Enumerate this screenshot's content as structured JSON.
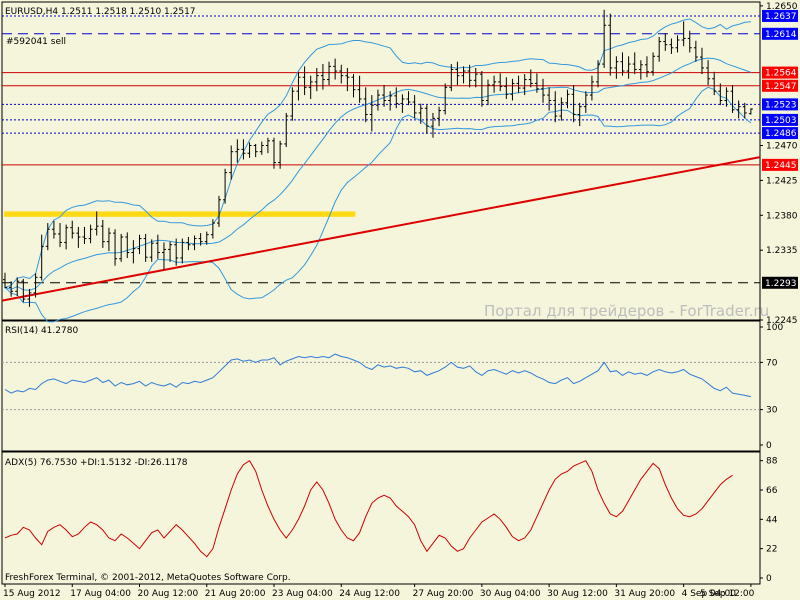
{
  "window": {
    "header": "EURUSD,H4  1.2511 1.2518 1.2510 1.2517",
    "order_label": "#592041 sell",
    "watermark": "Портал для трейдеров - ForTrader.ru",
    "copyright": "FreshForex Terminal, © 2001-2012, MetaQuotes Software Corp."
  },
  "colors": {
    "background": "#F5F5DC",
    "candle": "#000000",
    "bollinger": "#3399DD",
    "rsi": "#2E7BD6",
    "adx": "#CC0000",
    "support_line": "#DD0000",
    "level_red": "#CC0000",
    "level_blue": "#0000CC",
    "label_red_bg": "#FF0000",
    "label_blue_bg": "#0000FF",
    "zone": "#FFD700"
  },
  "chart_data": [
    {
      "type": "candlestick",
      "symbol": "EURUSD",
      "timeframe": "H4",
      "header_values": {
        "open": 1.2511,
        "high": 1.2518,
        "low": 1.251,
        "close": 1.2517
      },
      "ylim": [
        1.2245,
        1.2655
      ],
      "y_ticks": [
        1.265,
        1.2614,
        1.2564,
        1.2547,
        1.2523,
        1.2503,
        1.2486,
        1.247,
        1.2445,
        1.2425,
        1.238,
        1.2335,
        1.2293,
        1.2245
      ],
      "y_tick_labels": [
        "1.2650",
        "1.2614",
        "1.2564",
        "1.2547",
        "1.2523",
        "1.2503",
        "1.2486",
        "1.2470",
        "1.2445",
        "1.2425",
        "1.2380",
        "1.2335",
        "1.2293",
        "1.2245"
      ],
      "x_labels": [
        "15 Aug 2012",
        "17 Aug 04:00",
        "20 Aug 12:00",
        "21 Aug 20:00",
        "23 Aug 04:00",
        "24 Aug 12:00",
        "27 Aug 20:00",
        "30 Aug 04:00",
        "30 Aug 12:00",
        "31 Aug 20:00",
        "4 Sep 04:00",
        "5 Sep 12:00"
      ],
      "price_levels": [
        {
          "price": 1.2637,
          "label": "1.2637",
          "style": "dotted",
          "color": "blue"
        },
        {
          "price": 1.2614,
          "label": "1.2614",
          "style": "dashed",
          "color": "blue"
        },
        {
          "price": 1.2564,
          "label": "1.2564",
          "style": "solid",
          "color": "red"
        },
        {
          "price": 1.2547,
          "label": "1.2547",
          "style": "solid",
          "color": "red"
        },
        {
          "price": 1.2523,
          "label": "1.2523",
          "style": "dotted",
          "color": "blue"
        },
        {
          "price": 1.2503,
          "label": "1.2503",
          "style": "dotted",
          "color": "blue"
        },
        {
          "price": 1.2486,
          "label": "1.2486",
          "style": "dotted",
          "color": "blue"
        },
        {
          "price": 1.2445,
          "label": "1.2445",
          "style": "solid",
          "color": "red"
        },
        {
          "price": 1.2293,
          "label": "1.2293",
          "style": "dashed",
          "color": "black"
        }
      ],
      "trendline": {
        "start_price": 1.227,
        "end_price": 1.2455
      },
      "zone": {
        "top": 1.2385,
        "bottom": 1.2378,
        "end_bar": 57
      },
      "candles": [
        [
          1.2297,
          1.2306,
          1.2286,
          1.2287
        ],
        [
          1.2287,
          1.2295,
          1.2275,
          1.2282
        ],
        [
          1.2282,
          1.23,
          1.2276,
          1.2295
        ],
        [
          1.2295,
          1.2298,
          1.2268,
          1.2272
        ],
        [
          1.2272,
          1.2285,
          1.2262,
          1.228
        ],
        [
          1.228,
          1.2305,
          1.2274,
          1.23
        ],
        [
          1.23,
          1.2355,
          1.2296,
          1.234
        ],
        [
          1.234,
          1.237,
          1.2335,
          1.2362
        ],
        [
          1.2362,
          1.2373,
          1.235,
          1.2356
        ],
        [
          1.2356,
          1.237,
          1.2339,
          1.2345
        ],
        [
          1.2345,
          1.2368,
          1.2336,
          1.2364
        ],
        [
          1.2364,
          1.2373,
          1.235,
          1.2357
        ],
        [
          1.2357,
          1.2365,
          1.2338,
          1.2352
        ],
        [
          1.2352,
          1.2365,
          1.2343,
          1.235
        ],
        [
          1.235,
          1.2368,
          1.2344,
          1.2362
        ],
        [
          1.2362,
          1.2385,
          1.2354,
          1.2366
        ],
        [
          1.2366,
          1.2374,
          1.2338,
          1.2346
        ],
        [
          1.2346,
          1.2364,
          1.2334,
          1.2357
        ],
        [
          1.2357,
          1.2362,
          1.2315,
          1.2324
        ],
        [
          1.2324,
          1.2356,
          1.232,
          1.2352
        ],
        [
          1.2352,
          1.2358,
          1.2325,
          1.2332
        ],
        [
          1.2332,
          1.2348,
          1.2318,
          1.2337
        ],
        [
          1.2337,
          1.2355,
          1.233,
          1.235
        ],
        [
          1.235,
          1.2356,
          1.232,
          1.2326
        ],
        [
          1.2326,
          1.2349,
          1.232,
          1.2344
        ],
        [
          1.2344,
          1.2355,
          1.2324,
          1.2332
        ],
        [
          1.2332,
          1.2345,
          1.231,
          1.2336
        ],
        [
          1.2336,
          1.2346,
          1.232,
          1.2342
        ],
        [
          1.2342,
          1.235,
          1.2315,
          1.2325
        ],
        [
          1.2325,
          1.235,
          1.2318,
          1.2345
        ],
        [
          1.2345,
          1.2352,
          1.2335,
          1.2342
        ],
        [
          1.2342,
          1.2354,
          1.2335,
          1.235
        ],
        [
          1.235,
          1.2357,
          1.2341,
          1.2346
        ],
        [
          1.2346,
          1.2359,
          1.2342,
          1.2355
        ],
        [
          1.2355,
          1.2375,
          1.235,
          1.237
        ],
        [
          1.237,
          1.2405,
          1.2365,
          1.24
        ],
        [
          1.24,
          1.244,
          1.2395,
          1.2435
        ],
        [
          1.2435,
          1.247,
          1.2426,
          1.2462
        ],
        [
          1.2462,
          1.2478,
          1.2448,
          1.2465
        ],
        [
          1.2465,
          1.2478,
          1.2452,
          1.246
        ],
        [
          1.246,
          1.2474,
          1.2454,
          1.247
        ],
        [
          1.247,
          1.2472,
          1.2455,
          1.2462
        ],
        [
          1.2462,
          1.2475,
          1.2458,
          1.247
        ],
        [
          1.247,
          1.248,
          1.246,
          1.2476
        ],
        [
          1.2476,
          1.248,
          1.244,
          1.2448
        ],
        [
          1.2448,
          1.2476,
          1.244,
          1.2472
        ],
        [
          1.2472,
          1.2512,
          1.2468,
          1.2508
        ],
        [
          1.2508,
          1.2545,
          1.2502,
          1.254
        ],
        [
          1.254,
          1.2565,
          1.2528,
          1.2558
        ],
        [
          1.2558,
          1.2572,
          1.2535,
          1.2545
        ],
        [
          1.2545,
          1.256,
          1.253,
          1.2552
        ],
        [
          1.2552,
          1.257,
          1.254,
          1.256
        ],
        [
          1.256,
          1.2575,
          1.2542,
          1.2555
        ],
        [
          1.2555,
          1.2578,
          1.2548,
          1.2572
        ],
        [
          1.2572,
          1.2582,
          1.2555,
          1.2566
        ],
        [
          1.2566,
          1.2574,
          1.255,
          1.256
        ],
        [
          1.256,
          1.257,
          1.254,
          1.2558
        ],
        [
          1.2558,
          1.2562,
          1.2532,
          1.2542
        ],
        [
          1.2542,
          1.256,
          1.2525,
          1.253
        ],
        [
          1.253,
          1.2545,
          1.25,
          1.251
        ],
        [
          1.251,
          1.2535,
          1.2488,
          1.2522
        ],
        [
          1.2522,
          1.2542,
          1.2515,
          1.2535
        ],
        [
          1.2535,
          1.2548,
          1.252,
          1.2528
        ],
        [
          1.2528,
          1.254,
          1.2515,
          1.2534
        ],
        [
          1.2534,
          1.2545,
          1.2518,
          1.2524
        ],
        [
          1.2524,
          1.2536,
          1.2512,
          1.253
        ],
        [
          1.253,
          1.254,
          1.2522,
          1.2526
        ],
        [
          1.2526,
          1.2535,
          1.2505,
          1.2512
        ],
        [
          1.2512,
          1.2524,
          1.2498,
          1.2518
        ],
        [
          1.2518,
          1.2522,
          1.2485,
          1.2495
        ],
        [
          1.2495,
          1.2512,
          1.248,
          1.2505
        ],
        [
          1.2505,
          1.252,
          1.2495,
          1.2515
        ],
        [
          1.2515,
          1.255,
          1.251,
          1.2545
        ],
        [
          1.2545,
          1.2575,
          1.254,
          1.2568
        ],
        [
          1.2568,
          1.2578,
          1.2548,
          1.256
        ],
        [
          1.256,
          1.2572,
          1.255,
          1.2566
        ],
        [
          1.2566,
          1.2574,
          1.2545,
          1.2554
        ],
        [
          1.2554,
          1.257,
          1.2545,
          1.2562
        ],
        [
          1.2562,
          1.2566,
          1.252,
          1.2528
        ],
        [
          1.2528,
          1.2555,
          1.2522,
          1.2548
        ],
        [
          1.2548,
          1.256,
          1.2538,
          1.2552
        ],
        [
          1.2552,
          1.2563,
          1.254,
          1.2546
        ],
        [
          1.2546,
          1.2558,
          1.253,
          1.2536
        ],
        [
          1.2536,
          1.2556,
          1.2528,
          1.255
        ],
        [
          1.255,
          1.256,
          1.2538,
          1.2544
        ],
        [
          1.2544,
          1.2562,
          1.2535,
          1.2555
        ],
        [
          1.2555,
          1.2568,
          1.2545,
          1.255
        ],
        [
          1.255,
          1.2563,
          1.2538,
          1.2543
        ],
        [
          1.2543,
          1.2556,
          1.2525,
          1.2535
        ],
        [
          1.2535,
          1.2545,
          1.2515,
          1.2528
        ],
        [
          1.2528,
          1.254,
          1.25,
          1.2508
        ],
        [
          1.2508,
          1.2532,
          1.2502,
          1.2525
        ],
        [
          1.2525,
          1.2542,
          1.2518,
          1.2536
        ],
        [
          1.2536,
          1.2548,
          1.25,
          1.251
        ],
        [
          1.251,
          1.2525,
          1.2495,
          1.252
        ],
        [
          1.252,
          1.254,
          1.2512,
          1.2535
        ],
        [
          1.2535,
          1.256,
          1.2528,
          1.2552
        ],
        [
          1.2552,
          1.258,
          1.2545,
          1.2575
        ],
        [
          1.2575,
          1.2645,
          1.257,
          1.2625
        ],
        [
          1.2625,
          1.264,
          1.256,
          1.257
        ],
        [
          1.257,
          1.2585,
          1.2556,
          1.2578
        ],
        [
          1.2578,
          1.259,
          1.256,
          1.2566
        ],
        [
          1.2566,
          1.2585,
          1.2556,
          1.2575
        ],
        [
          1.2575,
          1.259,
          1.2562,
          1.2568
        ],
        [
          1.2568,
          1.258,
          1.2555,
          1.2574
        ],
        [
          1.2574,
          1.2585,
          1.2558,
          1.2565
        ],
        [
          1.2565,
          1.259,
          1.256,
          1.2585
        ],
        [
          1.2585,
          1.261,
          1.2578,
          1.2604
        ],
        [
          1.2604,
          1.2615,
          1.2592,
          1.26
        ],
        [
          1.26,
          1.2608,
          1.2588,
          1.2596
        ],
        [
          1.2596,
          1.2612,
          1.259,
          1.2606
        ],
        [
          1.2606,
          1.263,
          1.2598,
          1.2608
        ],
        [
          1.2608,
          1.2618,
          1.259,
          1.2596
        ],
        [
          1.2596,
          1.2605,
          1.2578,
          1.2584
        ],
        [
          1.2584,
          1.2596,
          1.2562,
          1.257
        ],
        [
          1.257,
          1.258,
          1.2548,
          1.2556
        ],
        [
          1.2556,
          1.2565,
          1.2535,
          1.254
        ],
        [
          1.254,
          1.255,
          1.2522,
          1.2528
        ],
        [
          1.2528,
          1.2545,
          1.252,
          1.254
        ],
        [
          1.254,
          1.2548,
          1.2512,
          1.2516
        ],
        [
          1.2516,
          1.2528,
          1.2505,
          1.252
        ],
        [
          1.252,
          1.2525,
          1.2505,
          1.2512
        ],
        [
          1.2511,
          1.2518,
          1.251,
          1.2517
        ]
      ]
    },
    {
      "type": "line",
      "title": "RSI(14) 41.2780",
      "ylim": [
        0,
        100
      ],
      "y_ticks": [
        100,
        70,
        30,
        0
      ],
      "y_tick_labels": [
        "100",
        "70",
        "30",
        "0"
      ],
      "series": [
        {
          "values": [
            47,
            44,
            46,
            45,
            48,
            47,
            52,
            55,
            56,
            54,
            52,
            55,
            54,
            53,
            55,
            57,
            53,
            55,
            50,
            53,
            51,
            52,
            54,
            50,
            53,
            51,
            50,
            52,
            49,
            53,
            52,
            54,
            53,
            55,
            57,
            62,
            67,
            72,
            73,
            71,
            72,
            70,
            72,
            72,
            74,
            68,
            71,
            73,
            75,
            74,
            75,
            74,
            75,
            74,
            77,
            75,
            74,
            72,
            70,
            66,
            64,
            68,
            66,
            67,
            65,
            66,
            65,
            62,
            63,
            59,
            61,
            63,
            66,
            70,
            66,
            65,
            67,
            62,
            59,
            63,
            64,
            62,
            60,
            63,
            61,
            63,
            61,
            58,
            56,
            53,
            52,
            55,
            57,
            52,
            54,
            57,
            60,
            63,
            70,
            62,
            63,
            59,
            62,
            60,
            61,
            59,
            62,
            64,
            62,
            61,
            62,
            64,
            60,
            58,
            56,
            52,
            48,
            46,
            49,
            44,
            43,
            42,
            41
          ]
        }
      ]
    },
    {
      "type": "line",
      "title": "ADX(5) 76.7530 +DI:1.5132 -DI:26.1178",
      "ylim": [
        0,
        90
      ],
      "y_ticks": [
        88,
        66,
        44,
        22,
        0
      ],
      "y_tick_labels": [
        "88",
        "66",
        "44",
        "22",
        "0"
      ],
      "series": [
        {
          "values": [
            30,
            32,
            33,
            38,
            36,
            30,
            25,
            35,
            38,
            40,
            36,
            31,
            33,
            38,
            42,
            40,
            36,
            30,
            28,
            33,
            30,
            26,
            22,
            28,
            34,
            36,
            30,
            35,
            40,
            36,
            31,
            26,
            20,
            16,
            22,
            38,
            52,
            66,
            78,
            85,
            88,
            80,
            66,
            54,
            44,
            36,
            30,
            36,
            44,
            54,
            66,
            72,
            66,
            56,
            44,
            36,
            30,
            28,
            34,
            46,
            56,
            60,
            62,
            60,
            54,
            50,
            46,
            40,
            28,
            20,
            26,
            32,
            30,
            24,
            20,
            22,
            30,
            36,
            42,
            45,
            48,
            44,
            38,
            31,
            28,
            30,
            36,
            46,
            56,
            66,
            74,
            78,
            80,
            84,
            86,
            88,
            80,
            66,
            56,
            48,
            46,
            50,
            58,
            66,
            74,
            80,
            86,
            82,
            70,
            60,
            52,
            47,
            46,
            48,
            52,
            58,
            64,
            70,
            74,
            77
          ]
        }
      ]
    }
  ]
}
